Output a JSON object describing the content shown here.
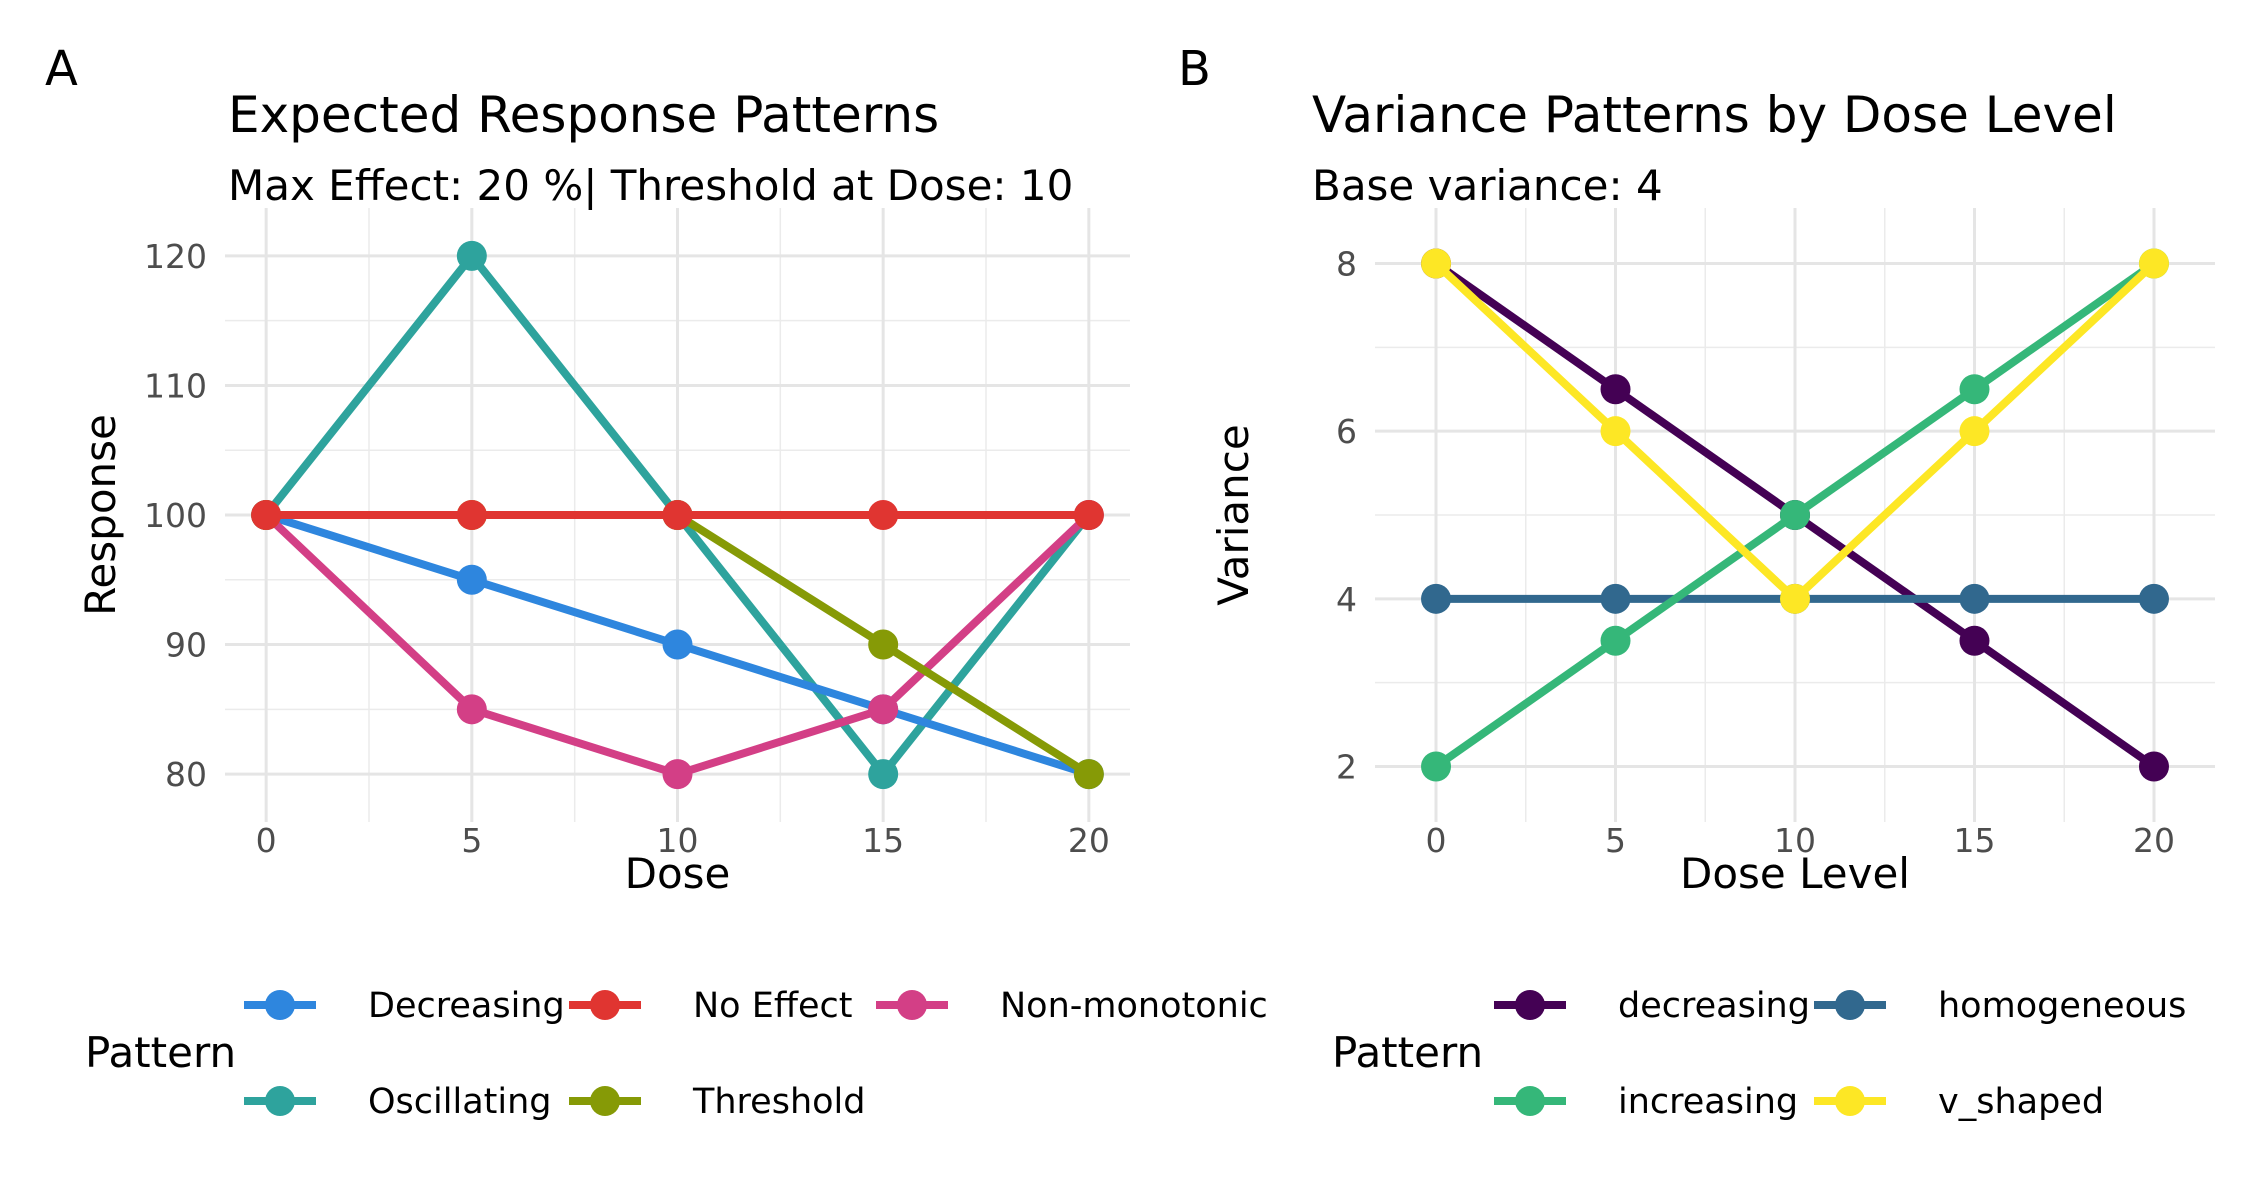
{
  "chart_data": [
    {
      "panel_label": "A",
      "type": "line",
      "title": "Expected Response Patterns",
      "subtitle": "Max Effect: 20 %| Threshold at Dose: 10",
      "xlabel": "Dose",
      "ylabel": "Response",
      "x": [
        0,
        5,
        10,
        15,
        20
      ],
      "xlim": [
        -1,
        21
      ],
      "ylim": [
        78,
        122
      ],
      "xticks": [
        0,
        5,
        10,
        15,
        20
      ],
      "yticks": [
        80,
        90,
        100,
        110,
        120
      ],
      "grid": true,
      "legend": {
        "title": "Pattern",
        "position": "bottom"
      },
      "series": [
        {
          "name": "Decreasing",
          "color": "#2E86DE",
          "values": [
            100,
            95,
            90,
            85,
            80
          ]
        },
        {
          "name": "No Effect",
          "color": "#E03531",
          "values": [
            100,
            100,
            100,
            100,
            100
          ]
        },
        {
          "name": "Non-monotonic",
          "color": "#D33F86",
          "values": [
            100,
            85,
            80,
            85,
            100
          ]
        },
        {
          "name": "Oscillating",
          "color": "#2EA39D",
          "values": [
            100,
            120,
            100,
            80,
            100
          ]
        },
        {
          "name": "Threshold",
          "color": "#869A06",
          "values": [
            100,
            100,
            100,
            90,
            80
          ]
        }
      ],
      "draw_order": [
        3,
        0,
        2,
        4,
        1
      ]
    },
    {
      "panel_label": "B",
      "type": "line",
      "title": "Variance Patterns by Dose Level",
      "subtitle": "Base variance: 4",
      "xlabel": "Dose Level",
      "ylabel": "Variance",
      "x": [
        0,
        5,
        10,
        15,
        20
      ],
      "xlim": [
        -1.7,
        21.7
      ],
      "ylim": [
        1.6,
        8.4
      ],
      "xticks": [
        0,
        5,
        10,
        15,
        20
      ],
      "yticks": [
        2,
        4,
        6,
        8
      ],
      "grid": true,
      "legend": {
        "title": "Pattern",
        "position": "bottom"
      },
      "series": [
        {
          "name": "decreasing",
          "color": "#440154",
          "values": [
            8,
            6.5,
            5,
            3.5,
            2
          ]
        },
        {
          "name": "homogeneous",
          "color": "#31688E",
          "values": [
            4,
            4,
            4,
            4,
            4
          ]
        },
        {
          "name": "increasing",
          "color": "#35B779",
          "values": [
            2,
            3.5,
            5,
            6.5,
            8
          ]
        },
        {
          "name": "v_shaped",
          "color": "#FDE725",
          "values": [
            8,
            6,
            4,
            6,
            8
          ]
        }
      ],
      "draw_order": [
        0,
        1,
        2,
        3
      ]
    }
  ]
}
